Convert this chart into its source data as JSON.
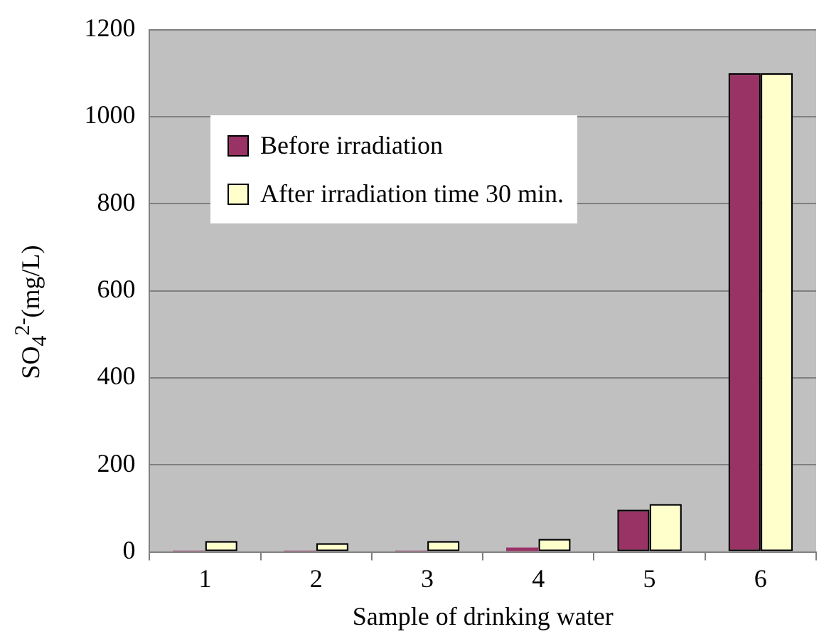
{
  "chart_data": {
    "type": "bar",
    "xlabel": "Sample of drinking water",
    "ylabel": "SO$_{4}$$^{2-}$(mg/L)",
    "categories": [
      "1",
      "2",
      "3",
      "4",
      "5",
      "6"
    ],
    "series": [
      {
        "name": "Before irradiation",
        "color": "#993366",
        "values": [
          3,
          3,
          3,
          10,
          97,
          1100
        ]
      },
      {
        "name": "After irradiation time 30 min.",
        "color": "#ffffcc",
        "values": [
          25,
          20,
          25,
          30,
          110,
          1100
        ]
      }
    ],
    "ylim": [
      0,
      1200
    ],
    "yticks": [
      0,
      200,
      400,
      600,
      800,
      1000,
      1200
    ],
    "grid": "y",
    "legend": "top left"
  }
}
